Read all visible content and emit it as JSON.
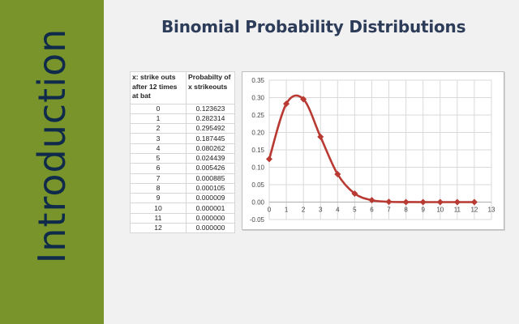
{
  "sidebar": {
    "title": "Introduction",
    "color": "#78942a"
  },
  "slide": {
    "title": "Binomial Probability Distributions"
  },
  "table": {
    "headers": [
      "x: strike outs after 12 times at bat",
      "Probabilty of x strikeouts"
    ],
    "rows": [
      [
        "0",
        "0.123623"
      ],
      [
        "1",
        "0.282314"
      ],
      [
        "2",
        "0.295492"
      ],
      [
        "3",
        "0.187445"
      ],
      [
        "4",
        "0.080262"
      ],
      [
        "5",
        "0.024439"
      ],
      [
        "6",
        "0.005426"
      ],
      [
        "7",
        "0.000885"
      ],
      [
        "8",
        "0.000105"
      ],
      [
        "9",
        "0.000009"
      ],
      [
        "10",
        "0.000001"
      ],
      [
        "11",
        "0.000000"
      ],
      [
        "12",
        "0.000000"
      ]
    ]
  },
  "chart_data": {
    "type": "scatter",
    "title": "",
    "xlabel": "",
    "ylabel": "",
    "x": [
      0,
      1,
      2,
      3,
      4,
      5,
      6,
      7,
      8,
      9,
      10,
      11,
      12
    ],
    "series": [
      {
        "name": "Probability of x strikeouts",
        "color": "#b83a32",
        "values": [
          0.123623,
          0.282314,
          0.295492,
          0.187445,
          0.080262,
          0.024439,
          0.005426,
          0.000885,
          0.000105,
          9e-06,
          1e-06,
          0.0,
          0.0
        ]
      }
    ],
    "xlim": [
      0,
      13
    ],
    "ylim": [
      -0.05,
      0.35
    ],
    "xticks": [
      "0",
      "1",
      "2",
      "3",
      "4",
      "5",
      "6",
      "7",
      "8",
      "9",
      "10",
      "11",
      "12",
      "13"
    ],
    "yticks": [
      "0.35",
      "0.30",
      "0.25",
      "0.20",
      "0.15",
      "0.10",
      "0.05",
      "0.00",
      "-0.05"
    ],
    "grid": true,
    "smooth_line": true,
    "marker": "diamond",
    "legend": "none"
  }
}
